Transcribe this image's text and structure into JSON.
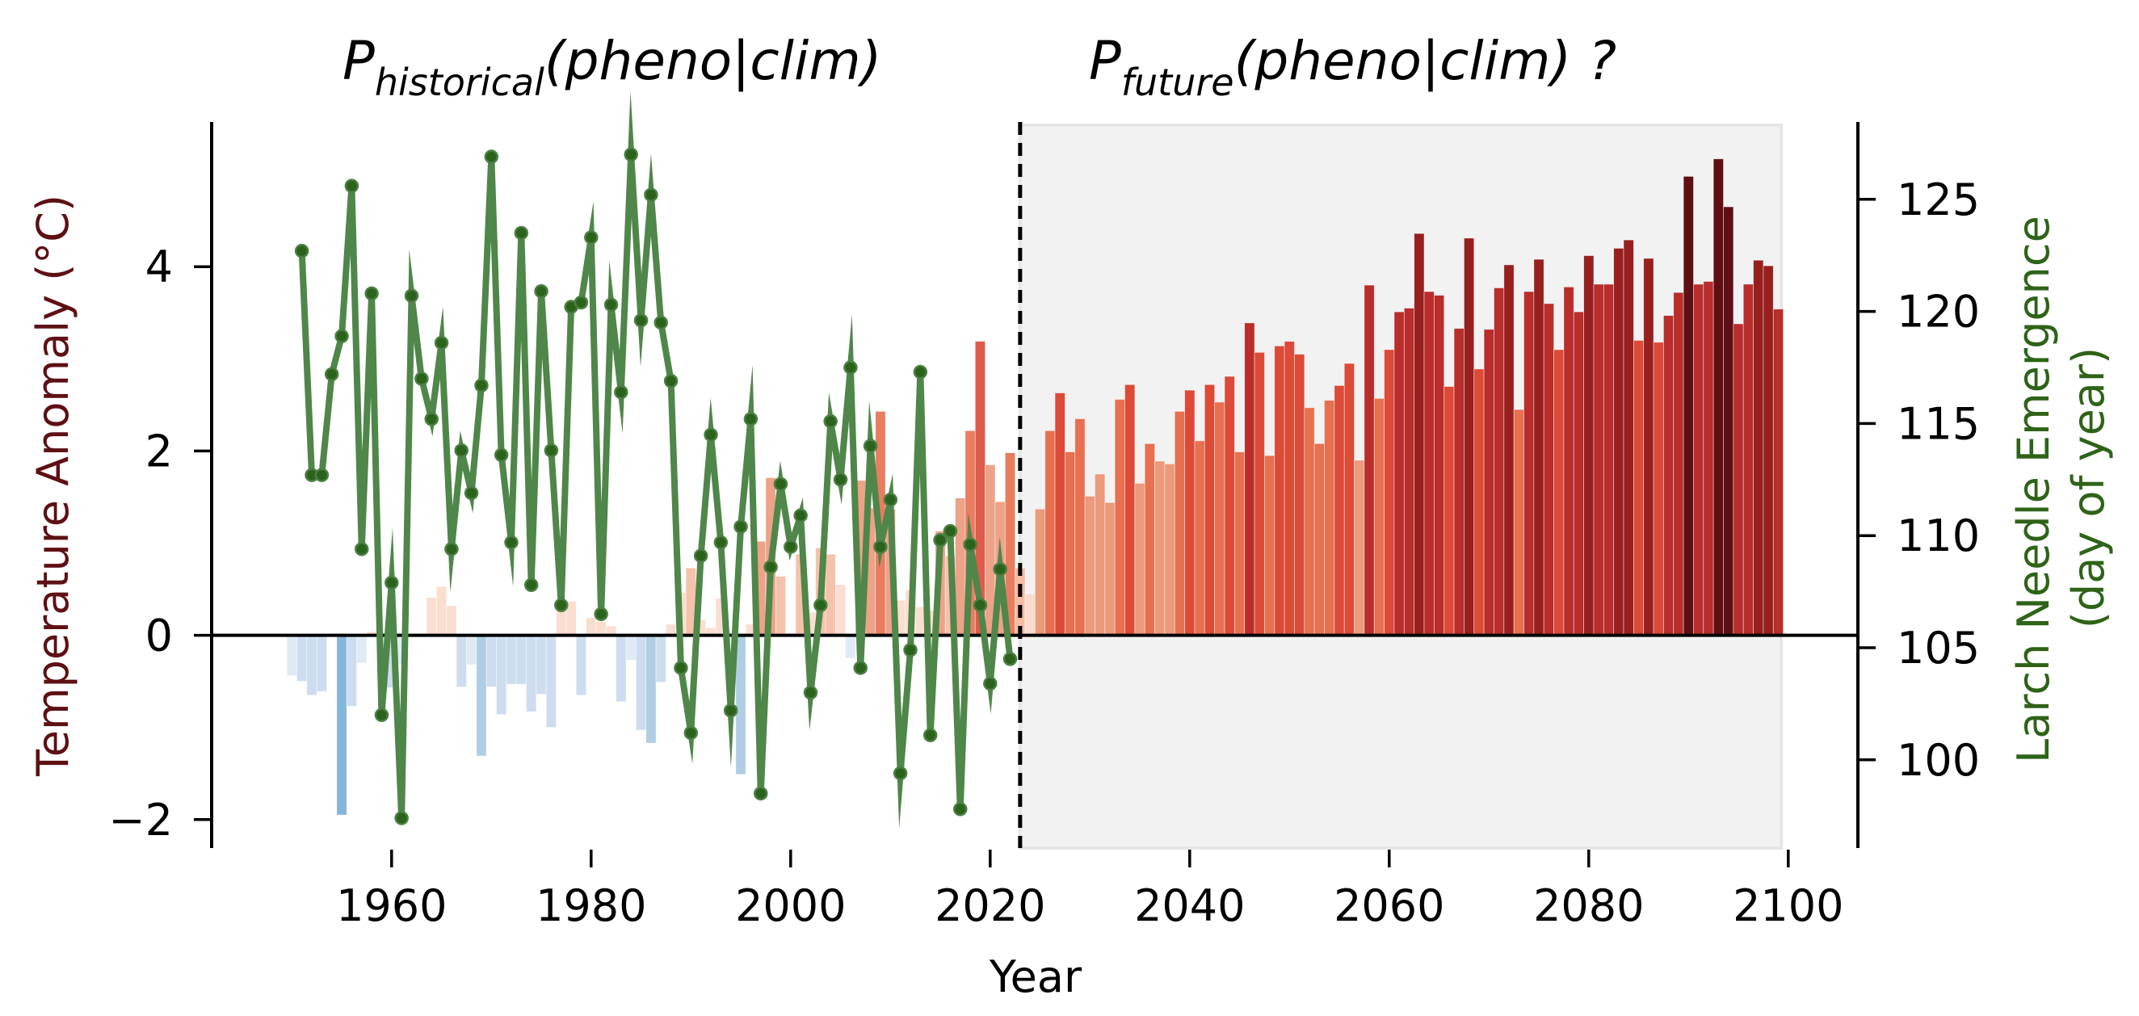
{
  "chart_data": {
    "type": "bar+line",
    "titles": {
      "left": {
        "main": "P",
        "sub": "historical",
        "rest": "(pheno|clim)"
      },
      "right": {
        "main": "P",
        "sub": "future",
        "rest": "(pheno|clim) ?"
      }
    },
    "xlabel": "Year",
    "ylabel_left": "Temperature Anomaly (°C)",
    "ylabel_right_line1": "Larch Needle Emergence",
    "ylabel_right_line2": "(day of year)",
    "xlim": [
      1942,
      2107
    ],
    "ylim_left": [
      -2.31,
      5.57
    ],
    "ylim_right": [
      96.1,
      128.4
    ],
    "xticks": [
      "1960",
      "1980",
      "2000",
      "2020",
      "2040",
      "2060",
      "2080",
      "2100"
    ],
    "xtick_values": [
      1960,
      1980,
      2000,
      2020,
      2040,
      2060,
      2080,
      2100
    ],
    "yticks_left": [
      "−2",
      "0",
      "2",
      "4"
    ],
    "ytick_left_values": [
      -2,
      0,
      2,
      4
    ],
    "yticks_right": [
      "100",
      "105",
      "110",
      "115",
      "120",
      "125"
    ],
    "ytick_right_values": [
      100,
      105,
      110,
      115,
      120,
      125
    ],
    "split_year": 2023,
    "future_shading": [
      2023,
      2099.3
    ],
    "grid": false,
    "colors": {
      "line": "#4f8649",
      "marker": "#2b621c",
      "zero_line": "#000000",
      "shade": "#f2f2f2",
      "shade_edge": "#e6e6e6"
    },
    "temperature": {
      "name": "Temperature Anomaly (°C)",
      "start_year": 1950,
      "values": [
        -0.44,
        -0.5,
        -0.65,
        -0.61,
        0.0,
        -1.95,
        -0.77,
        -0.3,
        0.04,
        -0.45,
        -0.57,
        -0.31,
        -0.02,
        0.02,
        0.41,
        0.53,
        0.32,
        -0.56,
        -0.32,
        -1.31,
        -0.56,
        -0.86,
        -0.53,
        -0.53,
        -0.83,
        -0.64,
        -1.0,
        0.37,
        0.37,
        -0.65,
        0.19,
        0.15,
        0.1,
        -0.72,
        -0.27,
        -1.03,
        -1.17,
        -0.51,
        0.12,
        0.46,
        0.73,
        0.17,
        0.08,
        0.4,
        0.03,
        -1.51,
        0.12,
        1.02,
        1.71,
        0.64,
        0.02,
        0.88,
        0.25,
        0.95,
        0.88,
        0.55,
        -0.25,
        1.68,
        1.38,
        2.43,
        1.37,
        0.38,
        0.49,
        0.31,
        0.27,
        1.13,
        0.86,
        1.49,
        2.22,
        3.19,
        1.85,
        1.45,
        1.98,
        0.73,
        0.45,
        1.37,
        2.22,
        2.63,
        1.99,
        2.35,
        1.51,
        1.75,
        1.44,
        2.56,
        2.72,
        1.65,
        2.08,
        1.89,
        1.86,
        2.43,
        2.66,
        2.11,
        2.72,
        2.53,
        2.81,
        1.99,
        3.39,
        3.07,
        1.95,
        3.14,
        3.19,
        3.05,
        2.47,
        2.08,
        2.55,
        2.71,
        2.95,
        1.9,
        3.8,
        2.57,
        3.1,
        3.51,
        3.55,
        4.36,
        3.73,
        3.69,
        2.7,
        3.33,
        4.31,
        2.89,
        3.32,
        3.77,
        4.02,
        2.45,
        3.73,
        4.08,
        3.6,
        3.1,
        3.78,
        3.51,
        4.12,
        3.81,
        3.81,
        4.2,
        4.29,
        3.2,
        4.09,
        3.18,
        3.47,
        3.72,
        4.98,
        3.81,
        3.84,
        5.17,
        4.65,
        3.38,
        3.81,
        4.07,
        4.01,
        3.54
      ]
    },
    "phenology": {
      "name": "Larch Needle Emergence (day of year)",
      "start_year": 1951,
      "values": [
        122.7,
        112.7,
        112.7,
        117.2,
        118.9,
        125.6,
        109.4,
        120.8,
        102.0,
        107.9,
        97.4,
        120.7,
        117.0,
        115.2,
        118.6,
        109.4,
        113.8,
        111.9,
        116.7,
        126.9,
        113.6,
        109.7,
        123.5,
        107.8,
        120.9,
        113.8,
        106.9,
        120.2,
        120.4,
        123.3,
        106.5,
        120.3,
        116.4,
        127.0,
        119.6,
        125.2,
        119.5,
        116.9,
        104.1,
        101.2,
        109.1,
        114.5,
        109.7,
        102.2,
        110.4,
        115.2,
        98.5,
        108.6,
        112.3,
        109.5,
        110.9,
        103.0,
        106.9,
        115.1,
        112.5,
        117.5,
        104.1,
        114.0,
        109.5,
        111.6,
        99.4,
        104.9,
        117.3,
        101.1,
        109.8,
        110.2,
        97.8,
        109.6,
        106.9,
        103.4,
        108.5,
        104.5
      ]
    }
  }
}
